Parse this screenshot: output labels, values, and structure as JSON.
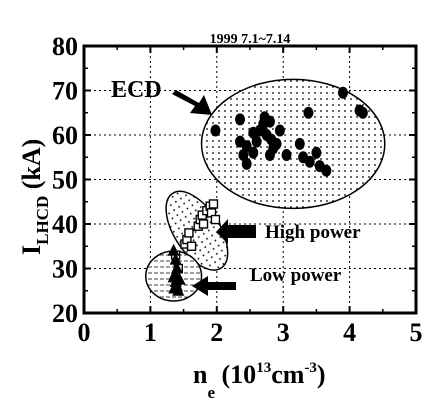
{
  "chart_data": {
    "type": "scatter",
    "title": "1999 7.1~7.14",
    "xlabel": {
      "main": "n",
      "sub": "e",
      "unit_open": " (10",
      "unit_exp": "13",
      "unit_mid": "cm",
      "unit_exp2": "-3",
      "unit_close": ")"
    },
    "ylabel": {
      "main": "I",
      "sub": "LHCD",
      "unit": " (kA)"
    },
    "xlim": [
      0,
      5
    ],
    "ylim": [
      20,
      80
    ],
    "x_ticks": [
      0,
      1,
      2,
      3,
      4,
      5
    ],
    "y_ticks": [
      20,
      30,
      40,
      50,
      60,
      70,
      80
    ],
    "grid": true,
    "annotations": [
      "ECD",
      "High power",
      "Low power"
    ],
    "series": [
      {
        "marker": "filled-circle",
        "points": [
          [
            1.98,
            61
          ],
          [
            2.35,
            63.5
          ],
          [
            2.35,
            58.5
          ],
          [
            2.45,
            57.5
          ],
          [
            2.4,
            55.5
          ],
          [
            2.45,
            53.5
          ],
          [
            2.55,
            56
          ],
          [
            2.6,
            58.5
          ],
          [
            2.65,
            61
          ],
          [
            2.7,
            62.5
          ],
          [
            2.72,
            64
          ],
          [
            2.75,
            60
          ],
          [
            2.8,
            63
          ],
          [
            2.82,
            59
          ],
          [
            2.85,
            57
          ],
          [
            2.9,
            58
          ],
          [
            2.95,
            61
          ],
          [
            3.05,
            55.5
          ],
          [
            3.25,
            58
          ],
          [
            3.3,
            55
          ],
          [
            3.38,
            65
          ],
          [
            3.4,
            54
          ],
          [
            3.5,
            56
          ],
          [
            3.55,
            53
          ],
          [
            3.65,
            52
          ],
          [
            3.9,
            69.5
          ],
          [
            4.15,
            65.5
          ],
          [
            4.2,
            65
          ],
          [
            2.8,
            55.5
          ],
          [
            2.55,
            60.5
          ]
        ]
      },
      {
        "marker": "open-square",
        "points": [
          [
            1.38,
            33
          ],
          [
            1.42,
            30
          ],
          [
            1.52,
            35.5
          ],
          [
            1.55,
            36.5
          ],
          [
            1.58,
            38
          ],
          [
            1.62,
            35
          ],
          [
            1.72,
            39.5
          ],
          [
            1.75,
            41
          ],
          [
            1.78,
            42
          ],
          [
            1.8,
            40
          ],
          [
            1.85,
            43
          ],
          [
            1.9,
            44
          ],
          [
            1.92,
            42.5
          ],
          [
            1.95,
            44.5
          ],
          [
            1.98,
            41
          ]
        ]
      },
      {
        "marker": "filled-triangle",
        "points": [
          [
            1.35,
            34
          ],
          [
            1.38,
            32
          ],
          [
            1.4,
            30
          ],
          [
            1.35,
            28
          ],
          [
            1.38,
            27
          ],
          [
            1.4,
            26
          ],
          [
            1.42,
            25
          ],
          [
            1.36,
            25.5
          ],
          [
            1.44,
            27.5
          ],
          [
            1.38,
            29
          ]
        ]
      }
    ],
    "regions": [
      {
        "name": "ECD",
        "shape": "ellipse",
        "cx": 3.15,
        "cy": 58,
        "rx": 1.38,
        "ry": 14.5,
        "fill": "dotted"
      },
      {
        "name": "High power",
        "shape": "ellipse",
        "cx": 1.7,
        "cy": 38.5,
        "rx": 0.34,
        "ry": 10,
        "rotate": -33,
        "fill": "dotted"
      },
      {
        "name": "Low power",
        "shape": "ellipse",
        "cx": 1.35,
        "cy": 28.3,
        "rx": 0.42,
        "ry": 5.6,
        "fill": "hatched"
      }
    ]
  }
}
